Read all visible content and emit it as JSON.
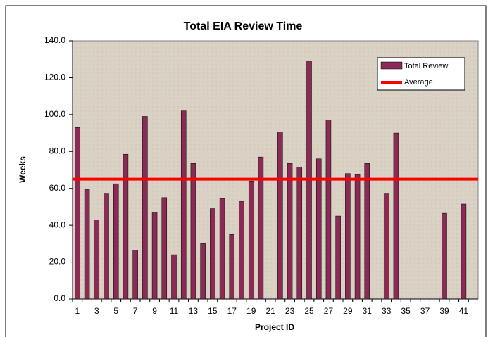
{
  "chart_data": {
    "type": "bar",
    "title": "Total EIA Review Time",
    "x_label": "Project ID",
    "y_label": "Weeks",
    "categories": [
      1,
      null,
      3,
      null,
      5,
      null,
      7,
      null,
      9,
      null,
      11,
      null,
      13,
      null,
      15,
      null,
      17,
      null,
      19,
      null,
      21,
      null,
      23,
      null,
      25,
      null,
      27,
      null,
      29,
      null,
      31,
      null,
      33,
      null,
      35,
      null,
      37,
      null,
      39,
      null,
      41,
      null
    ],
    "series": [
      {
        "name": "Total Review",
        "color": "#8b2a55",
        "values": [
          93,
          59.5,
          43,
          57,
          62.5,
          78.5,
          26.5,
          99,
          47,
          55,
          24,
          102,
          73.5,
          30,
          49,
          54.5,
          35,
          53,
          64,
          77,
          null,
          90.5,
          73.5,
          71.5,
          129,
          76,
          97,
          45,
          68,
          67.5,
          73.5,
          null,
          57,
          90,
          null,
          null,
          null,
          null,
          46.5,
          null,
          51.5,
          null
        ]
      }
    ],
    "average": {
      "name": "Average",
      "value": 65,
      "color": "#ff0000"
    },
    "ylim": [
      0,
      140
    ],
    "yticks": [
      {
        "value": 0,
        "label": "0.0"
      },
      {
        "value": 20,
        "label": "20.0"
      },
      {
        "value": 40,
        "label": "40.0"
      },
      {
        "value": 60,
        "label": "60.0"
      },
      {
        "value": 80,
        "label": "80.0"
      },
      {
        "value": 100,
        "label": "100.0"
      },
      {
        "value": 120,
        "label": "120.0"
      },
      {
        "value": 140,
        "label": "140.0"
      }
    ],
    "legend": "upper right"
  }
}
